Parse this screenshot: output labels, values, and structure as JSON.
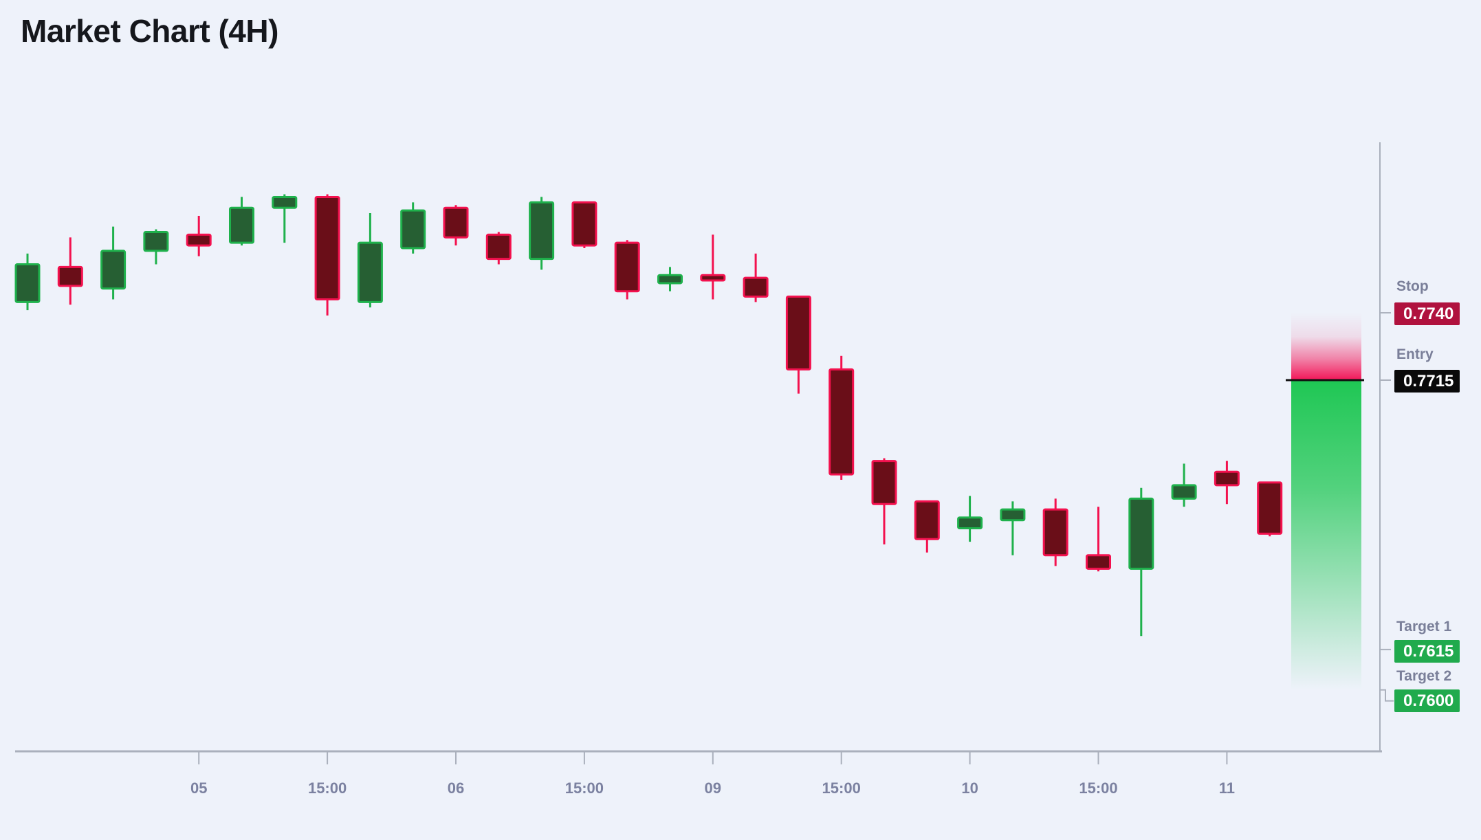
{
  "header": {
    "title": "Market Chart (4H)"
  },
  "side_panel": {
    "levels": [
      {
        "id": "stop",
        "label": "Stop",
        "value": "0.7740",
        "badge_color": "#b0123e",
        "text_color": "#ffffff"
      },
      {
        "id": "entry",
        "label": "Entry",
        "value": "0.7715",
        "badge_color": "#0a0a0a",
        "text_color": "#ffffff"
      },
      {
        "id": "target1",
        "label": "Target 1",
        "value": "0.7615",
        "badge_color": "#20aa4d",
        "text_color": "#ffffff"
      },
      {
        "id": "target2",
        "label": "Target 2",
        "value": "0.7600",
        "badge_color": "#20aa4d",
        "text_color": "#ffffff"
      }
    ]
  },
  "colors": {
    "background": "#eef2fa",
    "bull_border": "#1fb14c",
    "bull_fill": "#265f33",
    "bear_border": "#f3114e",
    "bear_fill": "#6a0e18",
    "risk_zone": "#f31658",
    "reward_zone": "#1fc754",
    "entry_line": "#111111",
    "axis": "#aab0bc",
    "tick_text": "#7b81a0"
  },
  "chart_data": {
    "type": "candlestick",
    "title": "Market Chart (4H)",
    "timeframe": "4H",
    "grid": false,
    "ylim": [
      0.75772,
      0.78033
    ],
    "x_ticks": [
      {
        "candle_index": 4,
        "label": "05"
      },
      {
        "candle_index": 7,
        "label": "15:00"
      },
      {
        "candle_index": 10,
        "label": "06"
      },
      {
        "candle_index": 13,
        "label": "15:00"
      },
      {
        "candle_index": 16,
        "label": "09"
      },
      {
        "candle_index": 19,
        "label": "15:00"
      },
      {
        "candle_index": 22,
        "label": "10"
      },
      {
        "candle_index": 25,
        "label": "15:00"
      },
      {
        "candle_index": 28,
        "label": "11"
      }
    ],
    "levels": {
      "stop": 0.774,
      "entry": 0.7715,
      "target1": 0.7615,
      "target2": 0.76
    },
    "zones": [
      {
        "name": "risk",
        "from": 0.774,
        "to": 0.7715,
        "color": "#f31658",
        "gradient": "fades-up-from-entry"
      },
      {
        "name": "reward",
        "from": 0.7715,
        "to": 0.76,
        "color": "#1fc754",
        "gradient": "fades-down-from-entry"
      }
    ],
    "candles": [
      {
        "o": 0.7744,
        "h": 0.7762,
        "l": 0.7741,
        "c": 0.7758
      },
      {
        "o": 0.7757,
        "h": 0.7768,
        "l": 0.7743,
        "c": 0.775
      },
      {
        "o": 0.7749,
        "h": 0.7772,
        "l": 0.7745,
        "c": 0.7763
      },
      {
        "o": 0.7763,
        "h": 0.7771,
        "l": 0.7758,
        "c": 0.777
      },
      {
        "o": 0.7769,
        "h": 0.7776,
        "l": 0.7761,
        "c": 0.7765
      },
      {
        "o": 0.7766,
        "h": 0.7783,
        "l": 0.7765,
        "c": 0.7779
      },
      {
        "o": 0.7779,
        "h": 0.7784,
        "l": 0.7766,
        "c": 0.7783
      },
      {
        "o": 0.7783,
        "h": 0.7784,
        "l": 0.7739,
        "c": 0.7745
      },
      {
        "o": 0.7744,
        "h": 0.7777,
        "l": 0.7742,
        "c": 0.7766
      },
      {
        "o": 0.7764,
        "h": 0.7781,
        "l": 0.7762,
        "c": 0.7778
      },
      {
        "o": 0.7779,
        "h": 0.778,
        "l": 0.7765,
        "c": 0.7768
      },
      {
        "o": 0.7769,
        "h": 0.777,
        "l": 0.7758,
        "c": 0.776
      },
      {
        "o": 0.776,
        "h": 0.7783,
        "l": 0.7756,
        "c": 0.7781
      },
      {
        "o": 0.7781,
        "h": 0.7781,
        "l": 0.7764,
        "c": 0.7765
      },
      {
        "o": 0.7766,
        "h": 0.7767,
        "l": 0.7745,
        "c": 0.7748
      },
      {
        "o": 0.7751,
        "h": 0.7757,
        "l": 0.7748,
        "c": 0.7754
      },
      {
        "o": 0.7754,
        "h": 0.7769,
        "l": 0.7745,
        "c": 0.7752
      },
      {
        "o": 0.7753,
        "h": 0.7762,
        "l": 0.7744,
        "c": 0.7746
      },
      {
        "o": 0.7746,
        "h": 0.7746,
        "l": 0.771,
        "c": 0.7719
      },
      {
        "o": 0.7719,
        "h": 0.7724,
        "l": 0.7678,
        "c": 0.768
      },
      {
        "o": 0.7685,
        "h": 0.7686,
        "l": 0.7654,
        "c": 0.7669
      },
      {
        "o": 0.767,
        "h": 0.767,
        "l": 0.7651,
        "c": 0.7656
      },
      {
        "o": 0.766,
        "h": 0.7672,
        "l": 0.7655,
        "c": 0.7664
      },
      {
        "o": 0.7663,
        "h": 0.767,
        "l": 0.765,
        "c": 0.7667
      },
      {
        "o": 0.7667,
        "h": 0.7671,
        "l": 0.7646,
        "c": 0.765
      },
      {
        "o": 0.765,
        "h": 0.7668,
        "l": 0.7644,
        "c": 0.7645
      },
      {
        "o": 0.7645,
        "h": 0.7675,
        "l": 0.762,
        "c": 0.7671
      },
      {
        "o": 0.7671,
        "h": 0.7684,
        "l": 0.7668,
        "c": 0.7676
      },
      {
        "o": 0.7681,
        "h": 0.7685,
        "l": 0.7669,
        "c": 0.7676
      },
      {
        "o": 0.7677,
        "h": 0.7677,
        "l": 0.7657,
        "c": 0.7658
      }
    ]
  }
}
